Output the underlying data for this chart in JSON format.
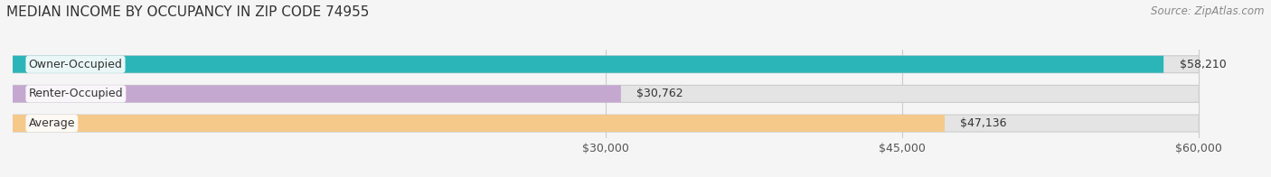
{
  "title": "MEDIAN INCOME BY OCCUPANCY IN ZIP CODE 74955",
  "source": "Source: ZipAtlas.com",
  "categories": [
    "Owner-Occupied",
    "Renter-Occupied",
    "Average"
  ],
  "values": [
    58210,
    30762,
    47136
  ],
  "bar_colors": [
    "#2cb5b8",
    "#c4a8d0",
    "#f5c98a"
  ],
  "bar_labels": [
    "$58,210",
    "$30,762",
    "$47,136"
  ],
  "xlim": [
    0,
    63000
  ],
  "xmin": 0,
  "xticks": [
    30000,
    45000,
    60000
  ],
  "xtick_labels": [
    "$30,000",
    "$45,000",
    "$60,000"
  ],
  "bg_color": "#f5f5f5",
  "bar_bg_color": "#e4e4e4",
  "title_fontsize": 11,
  "source_fontsize": 8.5,
  "label_fontsize": 9,
  "tick_fontsize": 9,
  "bar_height": 0.58
}
